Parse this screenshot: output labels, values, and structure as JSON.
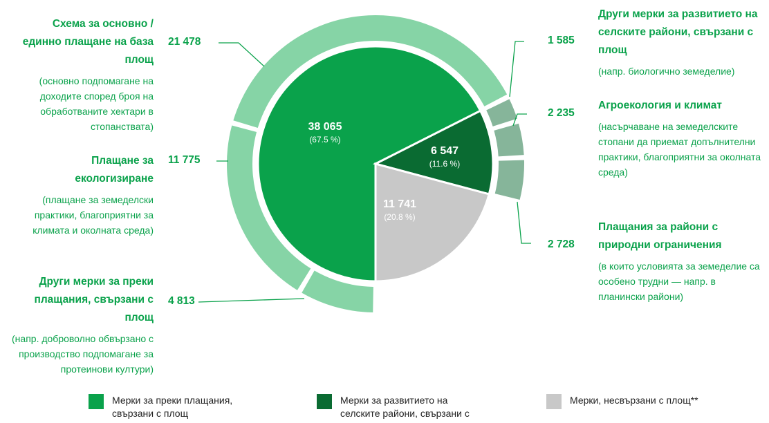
{
  "chart_data": {
    "type": "pie",
    "slices": [
      {
        "name": "Мерки за преки плащания, свързани с площ",
        "value": 38065,
        "value_label": "38 065",
        "percent_label": "(67.5 %)",
        "color": "#0aa24b",
        "ring_color": "#86d4a6",
        "parts": [
          {
            "title": "Други мерки за преки плащания, свързани с площ",
            "description": "(напр. доброволно обвързано с производство подпомагане за протеинови култури)",
            "value": 4813,
            "value_label": "4 813"
          },
          {
            "title": "Плащане за екологизиране",
            "description": "(плащане за земеделски практики, благоприятни за климата и околната среда)",
            "value": 11775,
            "value_label": "11 775"
          },
          {
            "title": "Схема за основно / единно плащане на база площ",
            "description": "(основно подпомагане на доходите според броя на обработваните хектари в стопанствата)",
            "value": 21478,
            "value_label": "21 478"
          }
        ]
      },
      {
        "name": "Мерки за развитието на селските райони, свързани с площ*",
        "value": 6547,
        "value_label": "6 547",
        "percent_label": "(11.6 %)",
        "color": "#0a6b32",
        "ring_color": "#86b59a",
        "parts": [
          {
            "title": "Други мерки за развитието на селските райони, свързани с площ",
            "description": "(напр. биологично земеделие)",
            "value": 1585,
            "value_label": "1 585"
          },
          {
            "title": "Агроекология и климат",
            "description": "(насърчаване на земеделските стопани да приемат допълнителни практики, благоприятни за околната среда)",
            "value": 2235,
            "value_label": "2 235"
          },
          {
            "title": "Плащания за райони с природни ограничения",
            "description": "(в които условията за земеделие са особено трудни — напр. в планински райони)",
            "value": 2728,
            "value_label": "2 728"
          }
        ]
      },
      {
        "name": "Мерки, несвързани с площ**",
        "value": 11741,
        "value_label": "11 741",
        "percent_label": "(20.8 %)",
        "color": "#c8c8c8"
      }
    ]
  }
}
